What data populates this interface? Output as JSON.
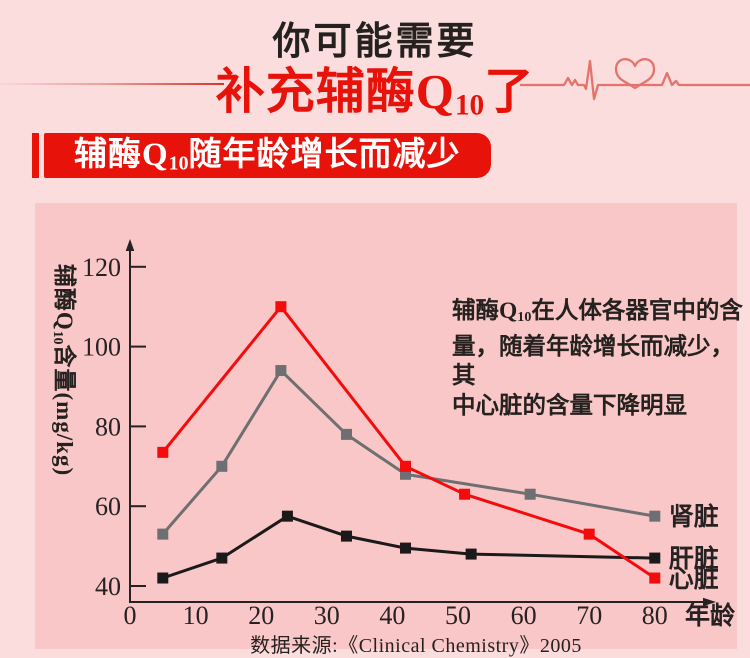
{
  "header": {
    "title_line1": "你可能需要",
    "title_line2_prefix": "补充辅酶Q",
    "title_line2_sub": "10",
    "title_line2_suffix": "了"
  },
  "banner": {
    "prefix": "辅酶Q",
    "sub": "10",
    "suffix": "随年龄增长而减少"
  },
  "chart_data": {
    "type": "line",
    "xlabel": "年龄",
    "ylabel_prefix": "辅酶Q",
    "ylabel_sub": "10",
    "ylabel_suffix": "含量(mg/kg)",
    "x_ticks": [
      0,
      10,
      20,
      30,
      40,
      50,
      60,
      70,
      80
    ],
    "y_ticks": [
      40,
      60,
      80,
      100,
      120
    ],
    "xlim": [
      0,
      85
    ],
    "ylim": [
      40,
      125
    ],
    "grid": "off",
    "legend_position": "right-of-line-ends",
    "series": [
      {
        "name": "肾脏",
        "color": "#6e6f72",
        "points": [
          [
            5,
            53
          ],
          [
            14,
            70
          ],
          [
            23,
            94
          ],
          [
            33,
            78
          ],
          [
            42,
            68
          ],
          [
            61,
            63
          ],
          [
            80,
            57.5
          ]
        ]
      },
      {
        "name": "肝脏",
        "color": "#1c191a",
        "points": [
          [
            5,
            42
          ],
          [
            14,
            47
          ],
          [
            24,
            57.5
          ],
          [
            33,
            52.5
          ],
          [
            42,
            49.5
          ],
          [
            52,
            48
          ],
          [
            80,
            47
          ]
        ]
      },
      {
        "name": "心脏",
        "color": "#f40b0c",
        "points": [
          [
            5,
            73.5
          ],
          [
            23,
            110
          ],
          [
            42,
            70
          ],
          [
            51,
            63
          ],
          [
            70,
            53
          ],
          [
            80,
            42
          ]
        ]
      }
    ],
    "annotation": {
      "line1_prefix": "辅酶Q",
      "line1_sub": "10",
      "line1_suffix": "在人体各器官中的含",
      "line2": "量，随着年龄增长而减少，其",
      "line3": "中心脏的含量下降明显"
    },
    "source": "数据来源:《Clinical Chemistry》2005"
  },
  "colors": {
    "accent_red": "#e7130b",
    "background": "#fbdddd",
    "panel_pink": "#f9c7c7"
  }
}
